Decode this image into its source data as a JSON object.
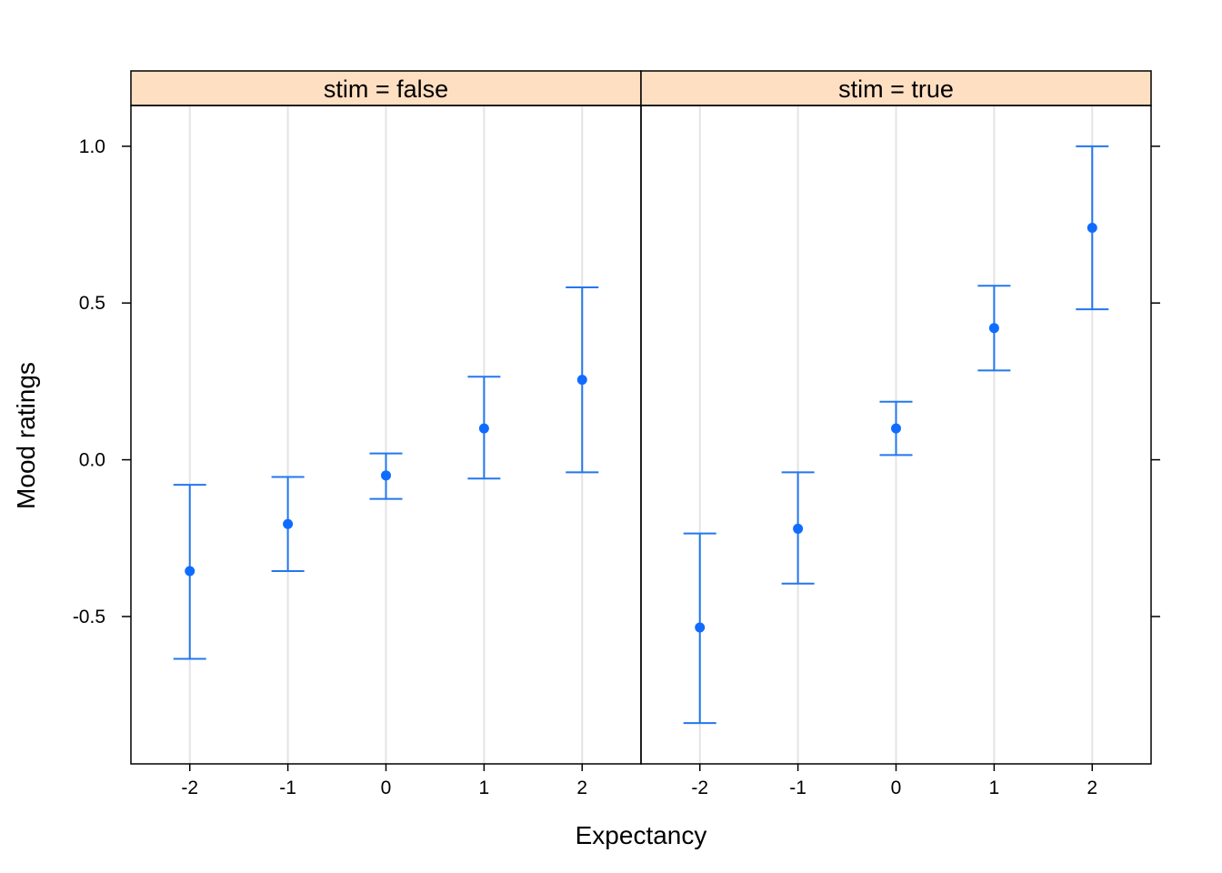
{
  "chart_data": {
    "type": "scatter",
    "subtype": "point-with-error-bars",
    "xlabel": "Expectancy",
    "ylabel": "Mood ratings",
    "x": [
      -2,
      -1,
      0,
      1,
      2
    ],
    "x_tick_labels": [
      "-2",
      "-1",
      "0",
      "1",
      "2"
    ],
    "xlim": [
      -2.6,
      2.6
    ],
    "ylim": [
      -0.97,
      1.13
    ],
    "y_ticks": [
      -0.5,
      0.0,
      0.5,
      1.0
    ],
    "y_tick_labels": [
      "-0.5",
      "0.0",
      "0.5",
      "1.0"
    ],
    "grid": "vertical",
    "colors": {
      "strip_fill": "#FFDFC2",
      "points": "#0F6CFF",
      "error_bars": "#2277EE",
      "grid": "#E4E4E4",
      "frame": "#000000"
    },
    "panels": [
      {
        "strip": "stim = false",
        "mean": [
          -0.355,
          -0.205,
          -0.05,
          0.1,
          0.255
        ],
        "lower": [
          -0.635,
          -0.355,
          -0.125,
          -0.06,
          -0.04
        ],
        "upper": [
          -0.08,
          -0.055,
          0.02,
          0.265,
          0.55
        ]
      },
      {
        "strip": "stim = true",
        "mean": [
          -0.535,
          -0.22,
          0.1,
          0.42,
          0.74
        ],
        "lower": [
          -0.84,
          -0.395,
          0.015,
          0.285,
          0.48
        ],
        "upper": [
          -0.235,
          -0.04,
          0.185,
          0.555,
          1.0
        ]
      }
    ]
  }
}
